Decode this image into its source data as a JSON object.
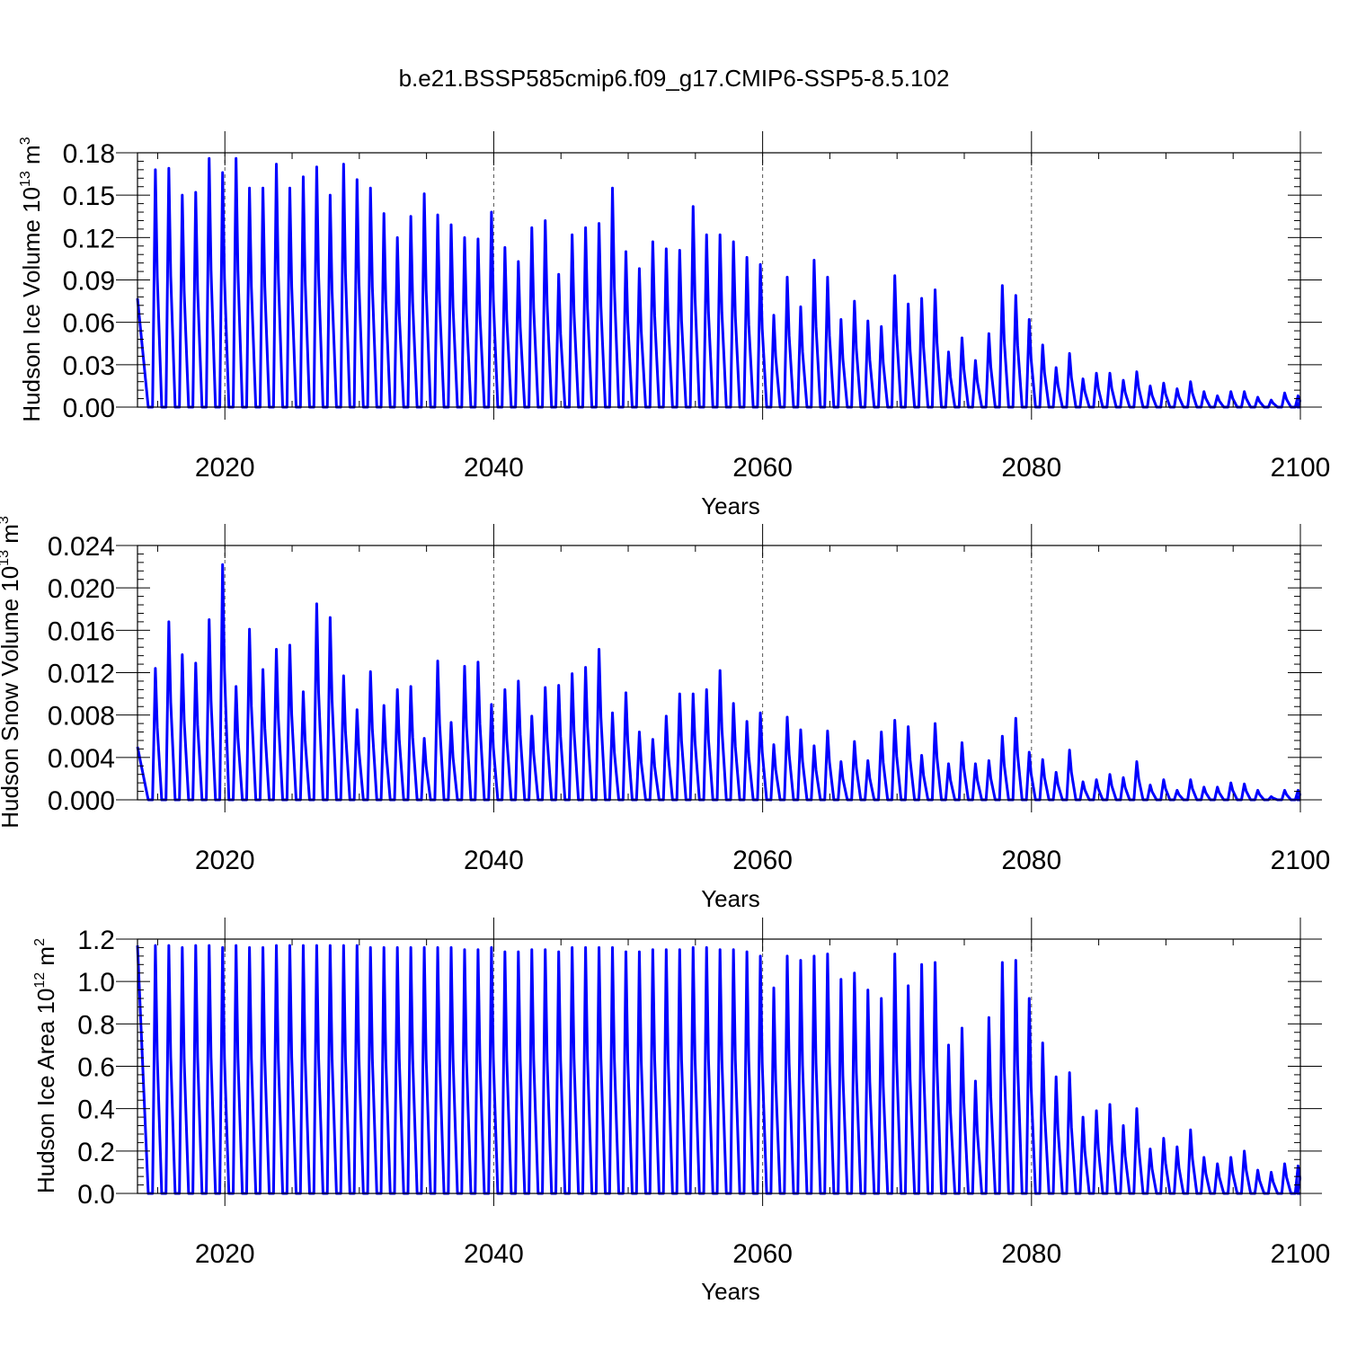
{
  "title": "b.e21.BSSP585cmip6.f09_g17.CMIP6-SSP5-8.5.102",
  "line_color": "#0000ff",
  "chart_data": [
    {
      "type": "line",
      "id": "ice-volume",
      "title": "b.e21.BSSP585cmip6.f09_g17.CMIP6-SSP5-8.5.102",
      "xlabel": "Years",
      "ylabel_main": "Hudson Ice Volume 10",
      "ylabel_exp": "13",
      "ylabel_unit": " m",
      "ylabel_unit_exp": "3",
      "xlim": [
        2013.5,
        2100
      ],
      "ylim": [
        0,
        0.18
      ],
      "xticks": [
        2020,
        2040,
        2060,
        2080,
        2100
      ],
      "xtick_labels": [
        "2020",
        "2040",
        "2060",
        "2080",
        "2100"
      ],
      "yticks": [
        0,
        0.03,
        0.06,
        0.09,
        0.12,
        0.15,
        0.18
      ],
      "ytick_labels": [
        "0.00",
        "0.03",
        "0.06",
        "0.09",
        "0.12",
        "0.15",
        "0.18"
      ],
      "grid": "dashed vertical at major x ticks",
      "start_value": 0.077,
      "peak_years": [
        2014,
        2015,
        2016,
        2017,
        2018,
        2019,
        2020,
        2021,
        2022,
        2023,
        2024,
        2025,
        2026,
        2027,
        2028,
        2029,
        2030,
        2031,
        2032,
        2033,
        2034,
        2035,
        2036,
        2037,
        2038,
        2039,
        2040,
        2041,
        2042,
        2043,
        2044,
        2045,
        2046,
        2047,
        2048,
        2049,
        2050,
        2051,
        2052,
        2053,
        2054,
        2055,
        2056,
        2057,
        2058,
        2059,
        2060,
        2061,
        2062,
        2063,
        2064,
        2065,
        2066,
        2067,
        2068,
        2069,
        2070,
        2071,
        2072,
        2073,
        2074,
        2075,
        2076,
        2077,
        2078,
        2079,
        2080,
        2081,
        2082,
        2083,
        2084,
        2085,
        2086,
        2087,
        2088,
        2089,
        2090,
        2091,
        2092,
        2093,
        2094,
        2095,
        2096,
        2097,
        2098,
        2099
      ],
      "peaks": [
        0.168,
        0.169,
        0.15,
        0.152,
        0.176,
        0.166,
        0.176,
        0.155,
        0.155,
        0.172,
        0.155,
        0.163,
        0.17,
        0.15,
        0.172,
        0.161,
        0.155,
        0.137,
        0.12,
        0.135,
        0.151,
        0.136,
        0.129,
        0.12,
        0.119,
        0.138,
        0.113,
        0.103,
        0.127,
        0.132,
        0.094,
        0.122,
        0.127,
        0.13,
        0.155,
        0.11,
        0.098,
        0.117,
        0.112,
        0.111,
        0.142,
        0.122,
        0.122,
        0.117,
        0.106,
        0.101,
        0.065,
        0.092,
        0.071,
        0.104,
        0.092,
        0.062,
        0.075,
        0.061,
        0.057,
        0.093,
        0.073,
        0.077,
        0.083,
        0.039,
        0.049,
        0.033,
        0.052,
        0.086,
        0.079,
        0.062,
        0.044,
        0.028,
        0.038,
        0.02,
        0.024,
        0.024,
        0.019,
        0.025,
        0.015,
        0.017,
        0.013,
        0.018,
        0.011,
        0.008,
        0.011,
        0.011,
        0.007,
        0.005,
        0.01,
        0.008
      ],
      "minima": 0.0,
      "end_value": 0.0
    },
    {
      "type": "line",
      "id": "snow-volume",
      "xlabel": "Years",
      "ylabel_main": "Hudson Snow Volume 10",
      "ylabel_exp": "13",
      "ylabel_unit": " m",
      "ylabel_unit_exp": "3",
      "xlim": [
        2013.5,
        2100
      ],
      "ylim": [
        0,
        0.024
      ],
      "xticks": [
        2020,
        2040,
        2060,
        2080,
        2100
      ],
      "xtick_labels": [
        "2020",
        "2040",
        "2060",
        "2080",
        "2100"
      ],
      "yticks": [
        0,
        0.004,
        0.008,
        0.012,
        0.016,
        0.02,
        0.024
      ],
      "ytick_labels": [
        "0.000",
        "0.004",
        "0.008",
        "0.012",
        "0.016",
        "0.020",
        "0.024"
      ],
      "grid": "dashed vertical at major x ticks",
      "start_value": 0.005,
      "peak_years": [
        2014,
        2015,
        2016,
        2017,
        2018,
        2019,
        2020,
        2021,
        2022,
        2023,
        2024,
        2025,
        2026,
        2027,
        2028,
        2029,
        2030,
        2031,
        2032,
        2033,
        2034,
        2035,
        2036,
        2037,
        2038,
        2039,
        2040,
        2041,
        2042,
        2043,
        2044,
        2045,
        2046,
        2047,
        2048,
        2049,
        2050,
        2051,
        2052,
        2053,
        2054,
        2055,
        2056,
        2057,
        2058,
        2059,
        2060,
        2061,
        2062,
        2063,
        2064,
        2065,
        2066,
        2067,
        2068,
        2069,
        2070,
        2071,
        2072,
        2073,
        2074,
        2075,
        2076,
        2077,
        2078,
        2079,
        2080,
        2081,
        2082,
        2083,
        2084,
        2085,
        2086,
        2087,
        2088,
        2089,
        2090,
        2091,
        2092,
        2093,
        2094,
        2095,
        2096,
        2097,
        2098,
        2099
      ],
      "peaks": [
        0.0124,
        0.0168,
        0.0137,
        0.0129,
        0.017,
        0.0222,
        0.0107,
        0.0161,
        0.0123,
        0.0142,
        0.0146,
        0.0102,
        0.0185,
        0.0172,
        0.0117,
        0.0085,
        0.0121,
        0.0089,
        0.0104,
        0.0107,
        0.0058,
        0.0131,
        0.0073,
        0.0126,
        0.013,
        0.009,
        0.0104,
        0.0112,
        0.0079,
        0.0106,
        0.0108,
        0.0119,
        0.0125,
        0.0142,
        0.0082,
        0.0101,
        0.0064,
        0.0057,
        0.0079,
        0.01,
        0.01,
        0.0104,
        0.0122,
        0.0091,
        0.0074,
        0.0082,
        0.0052,
        0.0078,
        0.0066,
        0.0051,
        0.0065,
        0.0036,
        0.0055,
        0.0037,
        0.0064,
        0.0075,
        0.0069,
        0.0042,
        0.0072,
        0.0034,
        0.0054,
        0.0034,
        0.0037,
        0.006,
        0.0077,
        0.0045,
        0.0038,
        0.0026,
        0.0047,
        0.0017,
        0.0019,
        0.0024,
        0.0021,
        0.0036,
        0.0014,
        0.0019,
        0.0009,
        0.0019,
        0.0012,
        0.0012,
        0.0016,
        0.0015,
        0.0009,
        0.0003,
        0.0009,
        0.0009
      ],
      "minima": 0.0,
      "end_value": 0.0
    },
    {
      "type": "line",
      "id": "ice-area",
      "xlabel": "Years",
      "ylabel_main": "Hudson Ice Area 10",
      "ylabel_exp": "12",
      "ylabel_unit": " m",
      "ylabel_unit_exp": "2",
      "xlim": [
        2013.5,
        2100
      ],
      "ylim": [
        0,
        1.2
      ],
      "xticks": [
        2020,
        2040,
        2060,
        2080,
        2100
      ],
      "xtick_labels": [
        "2020",
        "2040",
        "2060",
        "2080",
        "2100"
      ],
      "yticks": [
        0,
        0.2,
        0.4,
        0.6,
        0.8,
        1.0,
        1.2
      ],
      "ytick_labels": [
        "0.0",
        "0.2",
        "0.4",
        "0.6",
        "0.8",
        "1.0",
        "1.2"
      ],
      "grid": "dashed vertical at major x ticks",
      "start_value": 1.17,
      "peak_years": [
        2014,
        2015,
        2016,
        2017,
        2018,
        2019,
        2020,
        2021,
        2022,
        2023,
        2024,
        2025,
        2026,
        2027,
        2028,
        2029,
        2030,
        2031,
        2032,
        2033,
        2034,
        2035,
        2036,
        2037,
        2038,
        2039,
        2040,
        2041,
        2042,
        2043,
        2044,
        2045,
        2046,
        2047,
        2048,
        2049,
        2050,
        2051,
        2052,
        2053,
        2054,
        2055,
        2056,
        2057,
        2058,
        2059,
        2060,
        2061,
        2062,
        2063,
        2064,
        2065,
        2066,
        2067,
        2068,
        2069,
        2070,
        2071,
        2072,
        2073,
        2074,
        2075,
        2076,
        2077,
        2078,
        2079,
        2080,
        2081,
        2082,
        2083,
        2084,
        2085,
        2086,
        2087,
        2088,
        2089,
        2090,
        2091,
        2092,
        2093,
        2094,
        2095,
        2096,
        2097,
        2098,
        2099
      ],
      "peaks": [
        1.17,
        1.17,
        1.16,
        1.17,
        1.17,
        1.16,
        1.17,
        1.16,
        1.16,
        1.17,
        1.17,
        1.17,
        1.17,
        1.17,
        1.17,
        1.17,
        1.16,
        1.16,
        1.16,
        1.16,
        1.16,
        1.16,
        1.16,
        1.15,
        1.15,
        1.16,
        1.14,
        1.14,
        1.15,
        1.15,
        1.14,
        1.16,
        1.16,
        1.16,
        1.16,
        1.14,
        1.14,
        1.15,
        1.15,
        1.15,
        1.16,
        1.16,
        1.15,
        1.15,
        1.14,
        1.12,
        0.97,
        1.12,
        1.1,
        1.12,
        1.13,
        1.01,
        1.04,
        0.96,
        0.92,
        1.13,
        0.98,
        1.08,
        1.09,
        0.7,
        0.78,
        0.53,
        0.83,
        1.09,
        1.1,
        0.92,
        0.71,
        0.55,
        0.57,
        0.36,
        0.39,
        0.42,
        0.32,
        0.4,
        0.21,
        0.26,
        0.22,
        0.3,
        0.17,
        0.14,
        0.17,
        0.2,
        0.11,
        0.1,
        0.14,
        0.13
      ],
      "minima": 0.0,
      "end_value": 0.0
    }
  ]
}
